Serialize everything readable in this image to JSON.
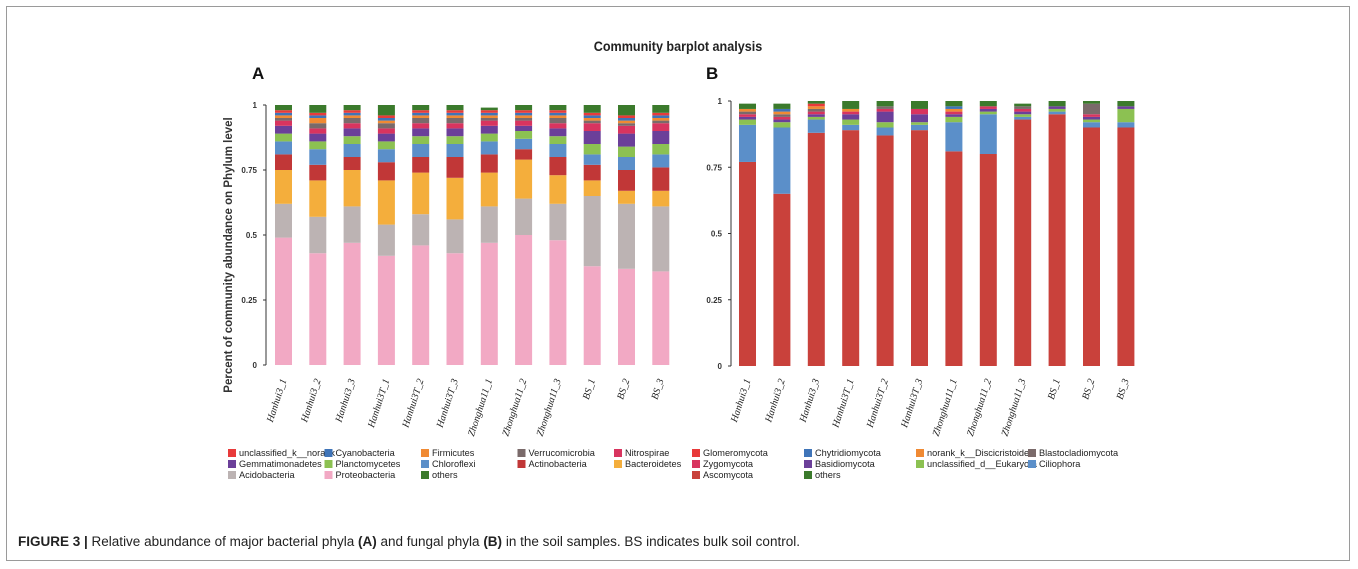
{
  "title": "Community barplot analysis",
  "caption": {
    "label": "FIGURE 3 |",
    "t1": " Relative abundance of major bacterial phyla ",
    "a": "(A)",
    "t2": " and fungal phyla ",
    "b": "(B)",
    "t3": " in the soil samples. BS indicates bulk soil control."
  },
  "chart_data": [
    {
      "type": "bar",
      "stacked": true,
      "panel_label": "A",
      "ylabel": "Percent of community abundance on Phylum level",
      "ylim": [
        0,
        1
      ],
      "yticks": [
        "0",
        "0.25",
        "0.5",
        "0.75",
        "1"
      ],
      "categories": [
        "Hanhui3_1",
        "Hanhui3_2",
        "Hanhui3_3",
        "Hanhui3T_1",
        "Hanhui3T_2",
        "Hanhui3T_3",
        "Zhonghua11_1",
        "Zhonghua11_2",
        "Zhonghua11_3",
        "BS_1",
        "BS_2",
        "BS_3"
      ],
      "legend_order": [
        "unclassified_k__norank",
        "Cyanobacteria",
        "Firmicutes",
        "Verrucomicrobia",
        "Nitrospirae",
        "Gemmatimonadetes",
        "Planctomycetes",
        "Chloroflexi",
        "Actinobacteria",
        "Bacteroidetes",
        "Acidobacteria",
        "Proteobacteria",
        "others"
      ],
      "series": [
        {
          "name": "Proteobacteria",
          "color": "#f2a9c4",
          "values": [
            0.49,
            0.43,
            0.47,
            0.42,
            0.46,
            0.43,
            0.47,
            0.5,
            0.48,
            0.38,
            0.37,
            0.36
          ]
        },
        {
          "name": "Acidobacteria",
          "color": "#bcb3b3",
          "values": [
            0.13,
            0.14,
            0.14,
            0.12,
            0.12,
            0.13,
            0.14,
            0.14,
            0.14,
            0.27,
            0.25,
            0.25
          ]
        },
        {
          "name": "Bacteroidetes",
          "color": "#f4ae3c",
          "values": [
            0.13,
            0.14,
            0.14,
            0.17,
            0.16,
            0.16,
            0.13,
            0.15,
            0.11,
            0.06,
            0.05,
            0.06
          ]
        },
        {
          "name": "Actinobacteria",
          "color": "#c13737",
          "values": [
            0.06,
            0.06,
            0.05,
            0.07,
            0.06,
            0.08,
            0.07,
            0.04,
            0.07,
            0.06,
            0.08,
            0.09
          ]
        },
        {
          "name": "Chloroflexi",
          "color": "#5b8fc9",
          "values": [
            0.05,
            0.06,
            0.05,
            0.05,
            0.05,
            0.05,
            0.05,
            0.04,
            0.05,
            0.04,
            0.05,
            0.05
          ]
        },
        {
          "name": "Planctomycetes",
          "color": "#8cc152",
          "values": [
            0.03,
            0.03,
            0.03,
            0.03,
            0.03,
            0.03,
            0.03,
            0.03,
            0.03,
            0.04,
            0.04,
            0.04
          ]
        },
        {
          "name": "Gemmatimonadetes",
          "color": "#6b3f99",
          "values": [
            0.03,
            0.03,
            0.03,
            0.03,
            0.03,
            0.03,
            0.03,
            0.02,
            0.03,
            0.05,
            0.05,
            0.05
          ]
        },
        {
          "name": "Nitrospirae",
          "color": "#d8345f",
          "values": [
            0.02,
            0.02,
            0.02,
            0.02,
            0.02,
            0.02,
            0.02,
            0.02,
            0.02,
            0.03,
            0.03,
            0.03
          ]
        },
        {
          "name": "Verrucomicrobia",
          "color": "#7a6a6a",
          "values": [
            0.01,
            0.02,
            0.02,
            0.02,
            0.02,
            0.02,
            0.01,
            0.01,
            0.02,
            0.01,
            0.01,
            0.01
          ]
        },
        {
          "name": "Firmicutes",
          "color": "#f08a33",
          "values": [
            0.01,
            0.02,
            0.01,
            0.01,
            0.01,
            0.01,
            0.01,
            0.01,
            0.01,
            0.01,
            0.01,
            0.01
          ]
        },
        {
          "name": "Cyanobacteria",
          "color": "#3f74b8",
          "values": [
            0.01,
            0.01,
            0.01,
            0.01,
            0.01,
            0.01,
            0.01,
            0.01,
            0.01,
            0.01,
            0.01,
            0.01
          ]
        },
        {
          "name": "unclassified_k__norank",
          "color": "#e83a3a",
          "values": [
            0.01,
            0.01,
            0.01,
            0.01,
            0.01,
            0.01,
            0.01,
            0.01,
            0.01,
            0.01,
            0.01,
            0.01
          ]
        },
        {
          "name": "others",
          "color": "#3b7a2c",
          "values": [
            0.02,
            0.03,
            0.02,
            0.04,
            0.02,
            0.02,
            0.01,
            0.02,
            0.02,
            0.03,
            0.04,
            0.03
          ]
        }
      ]
    },
    {
      "type": "bar",
      "stacked": true,
      "panel_label": "B",
      "ylim": [
        0,
        1
      ],
      "yticks": [
        "0",
        "0.25",
        "0.5",
        "0.75",
        "1"
      ],
      "categories": [
        "Hanhui3_1",
        "Hanhui3_2",
        "Hanhui3_3",
        "Hanhui3T_1",
        "Hanhui3T_2",
        "Hanhui3T_3",
        "Zhonghua11_1",
        "Zhonghua11_2",
        "Zhonghua11_3",
        "BS_1",
        "BS_2",
        "BS_3"
      ],
      "legend_order": [
        "Glomeromycota",
        "Chytridiomycota",
        "norank_k__Discicristoidea",
        "Blastocladiomycota",
        "Zygomycota",
        "Basidiomycota",
        "unclassified_d__Eukaryota",
        "Ciliophora",
        "Ascomycota",
        "others"
      ],
      "series": [
        {
          "name": "Ascomycota",
          "color": "#c9413b",
          "values": [
            0.77,
            0.65,
            0.88,
            0.89,
            0.87,
            0.89,
            0.81,
            0.8,
            0.93,
            0.95,
            0.9,
            0.9
          ]
        },
        {
          "name": "Ciliophora",
          "color": "#5b8fc9",
          "values": [
            0.14,
            0.25,
            0.05,
            0.02,
            0.03,
            0.02,
            0.11,
            0.15,
            0.01,
            0.01,
            0.02,
            0.02
          ]
        },
        {
          "name": "unclassified_d__Eukaryota",
          "color": "#8cc152",
          "values": [
            0.02,
            0.02,
            0.01,
            0.02,
            0.02,
            0.01,
            0.02,
            0.01,
            0.01,
            0.01,
            0.01,
            0.05
          ]
        },
        {
          "name": "Basidiomycota",
          "color": "#6b3f99",
          "values": [
            0.01,
            0.01,
            0.01,
            0.02,
            0.04,
            0.03,
            0.01,
            0.01,
            0.01,
            0.01,
            0.01,
            0.01
          ]
        },
        {
          "name": "Zygomycota",
          "color": "#d8345f",
          "values": [
            0.01,
            0.01,
            0.01,
            0.01,
            0.01,
            0.02,
            0.01,
            0.01,
            0.01,
            0.0,
            0.01,
            0.0
          ]
        },
        {
          "name": "Blastocladiomycota",
          "color": "#7a6a6a",
          "values": [
            0.01,
            0.01,
            0.01,
            0.0,
            0.01,
            0.0,
            0.0,
            0.0,
            0.01,
            0.0,
            0.04,
            0.0
          ]
        },
        {
          "name": "norank_k__Discicristoidea",
          "color": "#f08a33",
          "values": [
            0.01,
            0.01,
            0.01,
            0.01,
            0.0,
            0.0,
            0.01,
            0.0,
            0.0,
            0.0,
            0.0,
            0.0
          ]
        },
        {
          "name": "Chytridiomycota",
          "color": "#3f74b8",
          "values": [
            0.0,
            0.01,
            0.0,
            0.0,
            0.0,
            0.0,
            0.01,
            0.0,
            0.0,
            0.0,
            0.0,
            0.0
          ]
        },
        {
          "name": "Glomeromycota",
          "color": "#e83a3a",
          "values": [
            0.0,
            0.0,
            0.01,
            0.0,
            0.0,
            0.0,
            0.0,
            0.0,
            0.0,
            0.0,
            0.0,
            0.0
          ]
        },
        {
          "name": "others",
          "color": "#3b7a2c",
          "values": [
            0.02,
            0.02,
            0.01,
            0.03,
            0.02,
            0.03,
            0.02,
            0.02,
            0.01,
            0.02,
            0.01,
            0.02
          ]
        }
      ]
    }
  ]
}
